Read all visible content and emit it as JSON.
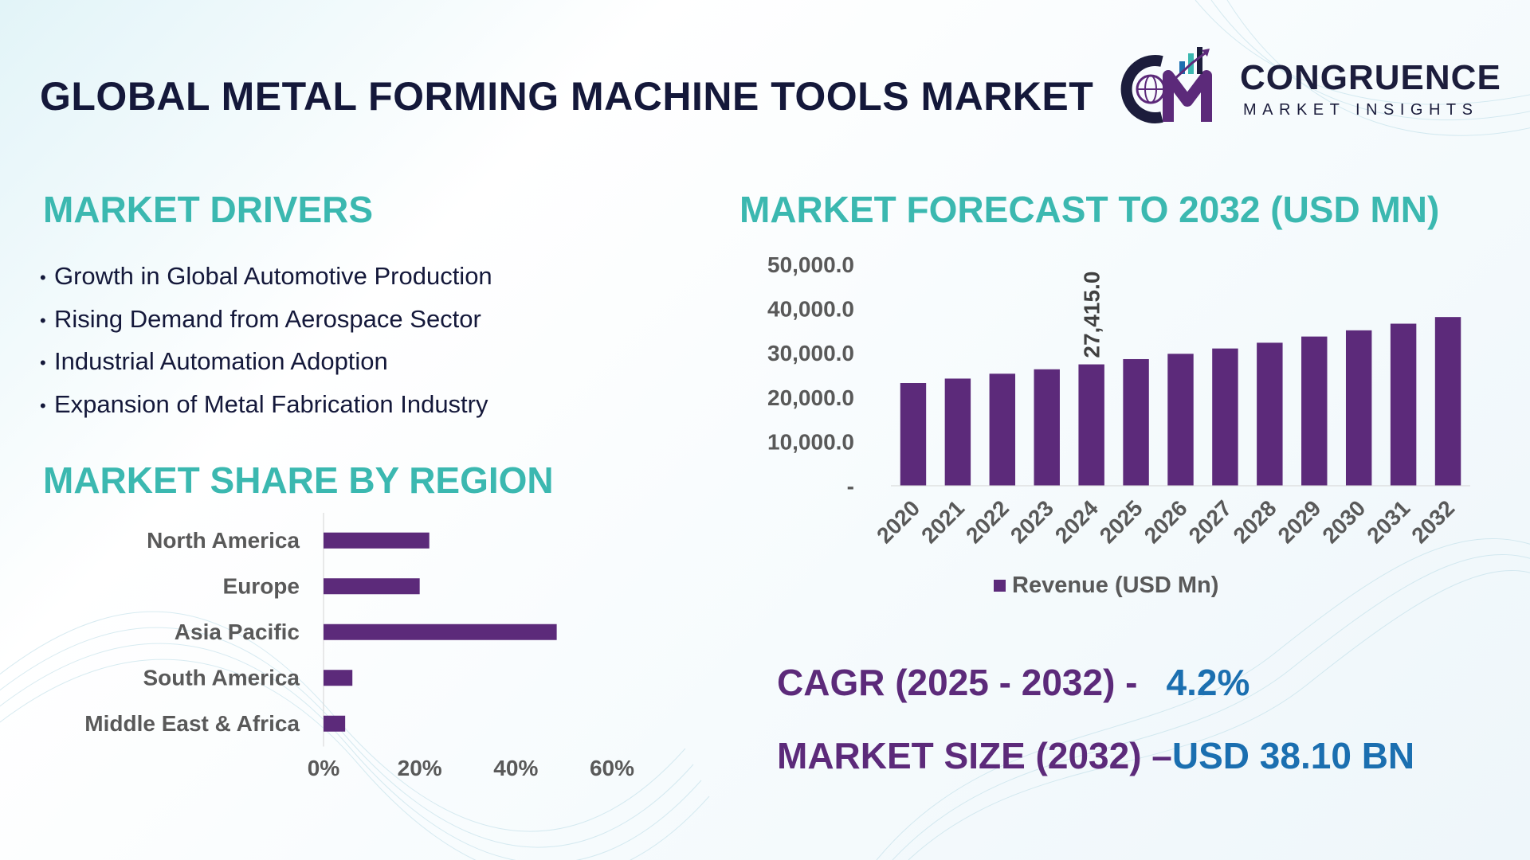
{
  "title": "GLOBAL METAL FORMING MACHINE TOOLS MARKET",
  "logo": {
    "monogram": "CM",
    "name": "CONGRUENCE",
    "tagline": "MARKET INSIGHTS"
  },
  "drivers": {
    "heading": "MARKET DRIVERS",
    "bullet": "•",
    "items": [
      "Growth in Global Automotive Production",
      "Rising Demand from Aerospace Sector",
      "Industrial Automation Adoption",
      "Expansion of Metal Fabrication Industry"
    ]
  },
  "region": {
    "heading": "MARKET SHARE BY REGION"
  },
  "forecast": {
    "heading": "MARKET FORECAST TO 2032 (USD MN)"
  },
  "stats": {
    "cagr_label": "CAGR (2025 - 2032) -",
    "cagr_value": "4.2%",
    "size_label": "MARKET SIZE (2032) –",
    "size_value": "USD 38.10 BN"
  },
  "colors": {
    "bar": "#5c2a7a",
    "heading": "#3bb8b0",
    "title": "#14183a",
    "stat_label": "#5c2a7a",
    "stat_value": "#1b6fb0"
  },
  "chart_data": [
    {
      "type": "bar",
      "orientation": "horizontal",
      "categories": [
        "North America",
        "Europe",
        "Asia Pacific",
        "South America",
        "Middle East & Africa"
      ],
      "values": [
        22,
        20,
        48.5,
        6,
        4.5
      ],
      "unit": "%",
      "xlim": [
        0,
        60
      ],
      "xticks": [
        "0%",
        "20%",
        "40%",
        "60%"
      ],
      "grid": false,
      "color": "#5c2a7a"
    },
    {
      "type": "bar",
      "categories": [
        "2020",
        "2021",
        "2022",
        "2023",
        "2024",
        "2025",
        "2026",
        "2027",
        "2028",
        "2029",
        "2030",
        "2031",
        "2032"
      ],
      "series": [
        {
          "name": "Revenue (USD Mn)",
          "values": [
            23200,
            24200,
            25300,
            26300,
            27415,
            28600,
            29800,
            31000,
            32300,
            33700,
            35100,
            36600,
            38100
          ]
        }
      ],
      "ylim": [
        0,
        50000
      ],
      "yticks": [
        "-",
        "10,000.0",
        "20,000.0",
        "30,000.0",
        "40,000.0",
        "50,000.0"
      ],
      "data_labels": [
        {
          "category": "2024",
          "text": "27,415.0"
        }
      ],
      "legend": "bottom",
      "grid": false,
      "color": "#5c2a7a"
    }
  ]
}
